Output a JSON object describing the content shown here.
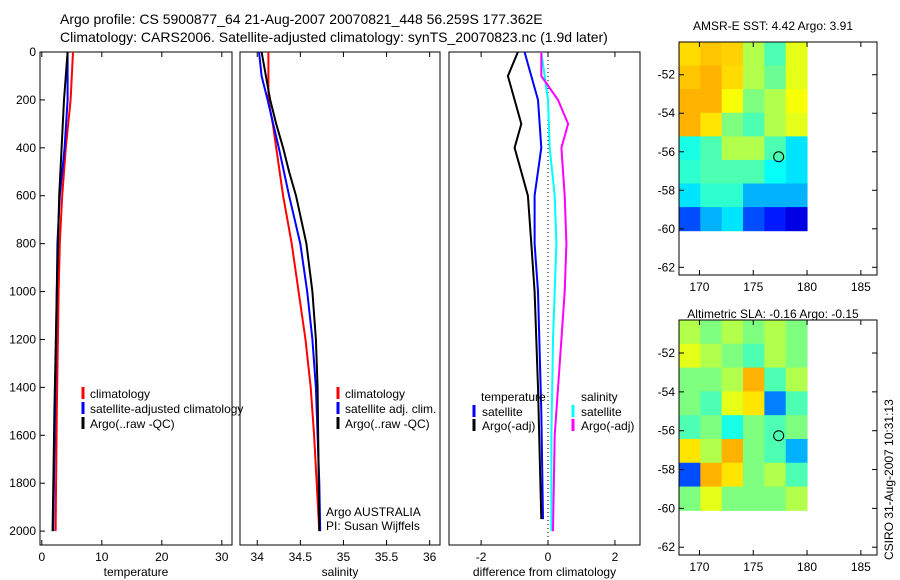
{
  "header": {
    "line1": "Argo profile: CS 5900877_64 21-Aug-2007 20070821_448 56.259S 177.362E",
    "line2": "Climatology: CARS2006. Satellite-adjusted climatology: synTS_20070823.nc (1.9d later)"
  },
  "side_label": "CSIRO 31-Aug-2007 10:31:13",
  "colors": {
    "climatology": "#ff0000",
    "satellite": "#0000ff",
    "argo": "#000000",
    "sal_satellite": "#00ffff",
    "sal_argo": "#ff00ff"
  },
  "chart_data": [
    {
      "type": "line",
      "id": "temp",
      "xlabel": "temperature",
      "xlim": [
        -0.3,
        31.7
      ],
      "ylim": [
        0,
        2058
      ],
      "xticks": [
        0,
        10,
        20,
        30
      ],
      "yticks": [
        0,
        200,
        400,
        600,
        800,
        1000,
        1200,
        1400,
        1600,
        1800,
        2000
      ],
      "legend": [
        "climatology",
        "satellite-adjusted climatology",
        "Argo(..raw -QC)"
      ],
      "series": [
        {
          "name": "climatology",
          "color": "#ff0000",
          "depth": [
            0,
            200,
            400,
            600,
            800,
            1000,
            1500,
            2000
          ],
          "values": [
            5.2,
            4.8,
            4.0,
            3.4,
            3.0,
            2.8,
            2.5,
            2.3
          ]
        },
        {
          "name": "satellite-adjusted climatology",
          "color": "#0000ff",
          "depth": [
            0,
            200,
            400,
            600,
            800,
            1000,
            1500,
            2000
          ],
          "values": [
            4.3,
            4.3,
            3.8,
            3.0,
            2.6,
            2.5,
            2.2,
            1.9
          ]
        },
        {
          "name": "Argo(..raw -QC)",
          "color": "#000000",
          "depth": [
            0,
            100,
            200,
            400,
            600,
            1000,
            1500,
            2000
          ],
          "values": [
            4.3,
            4.0,
            3.7,
            3.3,
            2.9,
            2.5,
            2.1,
            1.8
          ]
        }
      ]
    },
    {
      "type": "line",
      "id": "sal",
      "xlabel": "salinity",
      "xlim": [
        33.8,
        36.12
      ],
      "ylim": [
        0,
        2058
      ],
      "xticks": [
        34,
        34.5,
        35,
        35.5,
        36
      ],
      "legend": [
        "climatology",
        "satellite adj. clim.",
        "Argo(..raw -QC)"
      ],
      "annotation": [
        "Argo AUSTRALIA",
        "PI: Susan Wijffels"
      ],
      "series": [
        {
          "name": "climatology",
          "color": "#ff0000",
          "depth": [
            0,
            200,
            300,
            400,
            600,
            800,
            1000,
            1200,
            1400,
            1600,
            1800,
            2000
          ],
          "values": [
            34.13,
            34.13,
            34.18,
            34.22,
            34.3,
            34.4,
            34.48,
            34.56,
            34.62,
            34.66,
            34.69,
            34.72
          ]
        },
        {
          "name": "satellite adj. clim.",
          "color": "#0000ff",
          "depth": [
            0,
            100,
            200,
            400,
            600,
            800,
            1000,
            1200,
            1400,
            1600,
            1800,
            2000
          ],
          "values": [
            34.02,
            34.05,
            34.12,
            34.25,
            34.37,
            34.5,
            34.58,
            34.64,
            34.68,
            34.7,
            34.72,
            34.73
          ]
        },
        {
          "name": "Argo(..raw -QC)",
          "color": "#000000",
          "depth": [
            0,
            200,
            300,
            400,
            500,
            600,
            800,
            1000,
            1200,
            1400,
            2000
          ],
          "values": [
            34.05,
            34.15,
            34.22,
            34.3,
            34.37,
            34.45,
            34.57,
            34.64,
            34.68,
            34.7,
            34.72
          ]
        }
      ]
    },
    {
      "type": "line",
      "id": "diff",
      "xlabel": "difference from climatology",
      "xlim": [
        -2.96,
        2.75
      ],
      "ylim": [
        0,
        2058
      ],
      "xticks": [
        -2,
        0,
        2
      ],
      "legend_groups": [
        {
          "title": "temperature",
          "items": [
            "satellite",
            "Argo(-adj)"
          ]
        },
        {
          "title": "salinity",
          "items": [
            "satellite",
            "Argo(-adj)"
          ]
        }
      ],
      "series": [
        {
          "name": "temperature satellite",
          "color": "#0000ff",
          "depth": [
            0,
            50,
            100,
            200,
            400,
            600,
            800,
            1000,
            1500,
            1950
          ],
          "values": [
            -0.7,
            -0.6,
            -0.5,
            -0.3,
            -0.2,
            -0.4,
            -0.4,
            -0.3,
            -0.2,
            -0.15
          ]
        },
        {
          "name": "temperature Argo(-adj)",
          "color": "#000000",
          "depth": [
            0,
            100,
            200,
            300,
            400,
            500,
            600,
            800,
            1000,
            1400,
            1950
          ],
          "values": [
            -0.9,
            -1.2,
            -1.0,
            -0.8,
            -1.0,
            -0.8,
            -0.6,
            -0.5,
            -0.4,
            -0.3,
            -0.2
          ]
        },
        {
          "name": "salinity satellite",
          "color": "#00ffff",
          "depth": [
            0,
            100,
            200,
            400,
            600,
            800,
            1000,
            1200,
            1600,
            2000
          ],
          "values": [
            -0.2,
            -0.1,
            0,
            0.05,
            0.2,
            0.25,
            0.2,
            0.15,
            0.1,
            0.1
          ]
        },
        {
          "name": "salinity Argo(-adj)",
          "color": "#ff00ff",
          "depth": [
            0,
            100,
            200,
            300,
            400,
            600,
            800,
            1000,
            1200,
            1600,
            2000
          ],
          "values": [
            -0.2,
            -0.2,
            0.3,
            0.6,
            0.4,
            0.5,
            0.55,
            0.5,
            0.4,
            0.2,
            0.15
          ]
        }
      ]
    },
    {
      "type": "heatmap",
      "id": "sst",
      "title": "AMSR-E SST: 4.42 Argo: 3.91",
      "xlim": [
        168.1,
        186.5
      ],
      "ylim": [
        -62.4,
        -50.3
      ],
      "xticks": [
        170,
        175,
        180,
        185
      ],
      "yticks": [
        -52,
        -54,
        -56,
        -58,
        -60,
        -62
      ],
      "grid_lon": [
        168.1,
        180
      ],
      "grid_lat": [
        -50.3,
        -60.1
      ],
      "marker": [
        177.362,
        -56.259
      ],
      "grid": [
        [
          0.66,
          0.68,
          0.67,
          0.55,
          0.45,
          0.6
        ],
        [
          0.68,
          0.7,
          0.66,
          0.55,
          0.48,
          0.6
        ],
        [
          0.7,
          0.7,
          0.62,
          0.5,
          0.55,
          0.62
        ],
        [
          0.7,
          0.65,
          0.5,
          0.45,
          0.55,
          0.6
        ],
        [
          0.4,
          0.45,
          0.55,
          0.55,
          0.45,
          0.35
        ],
        [
          0.42,
          0.45,
          0.45,
          0.45,
          0.38,
          0.35
        ],
        [
          0.35,
          0.42,
          0.42,
          0.3,
          0.3,
          0.3
        ],
        [
          0.2,
          0.3,
          0.35,
          0.2,
          0.15,
          0.1
        ]
      ]
    },
    {
      "type": "heatmap",
      "id": "sla",
      "title": "Altimetric SLA: -0.16 Argo: -0.15",
      "xlim": [
        168.1,
        186.5
      ],
      "ylim": [
        -62.4,
        -50.3
      ],
      "xticks": [
        170,
        175,
        180,
        185
      ],
      "yticks": [
        -52,
        -54,
        -56,
        -58,
        -60,
        -62
      ],
      "grid_lon": [
        168.1,
        180
      ],
      "grid_lat": [
        -50.3,
        -60.1
      ],
      "marker": [
        177.362,
        -56.259
      ],
      "grid": [
        [
          0.55,
          0.5,
          0.55,
          0.5,
          0.55,
          0.5
        ],
        [
          0.6,
          0.55,
          0.5,
          0.45,
          0.55,
          0.5
        ],
        [
          0.5,
          0.5,
          0.55,
          0.7,
          0.45,
          0.55
        ],
        [
          0.5,
          0.45,
          0.6,
          0.65,
          0.25,
          0.45
        ],
        [
          0.45,
          0.5,
          0.4,
          0.5,
          0.45,
          0.5
        ],
        [
          0.65,
          0.55,
          0.7,
          0.5,
          0.45,
          0.3
        ],
        [
          0.2,
          0.7,
          0.65,
          0.5,
          0.55,
          0.45
        ],
        [
          0.5,
          0.6,
          0.5,
          0.5,
          0.5,
          0.55
        ]
      ]
    }
  ]
}
